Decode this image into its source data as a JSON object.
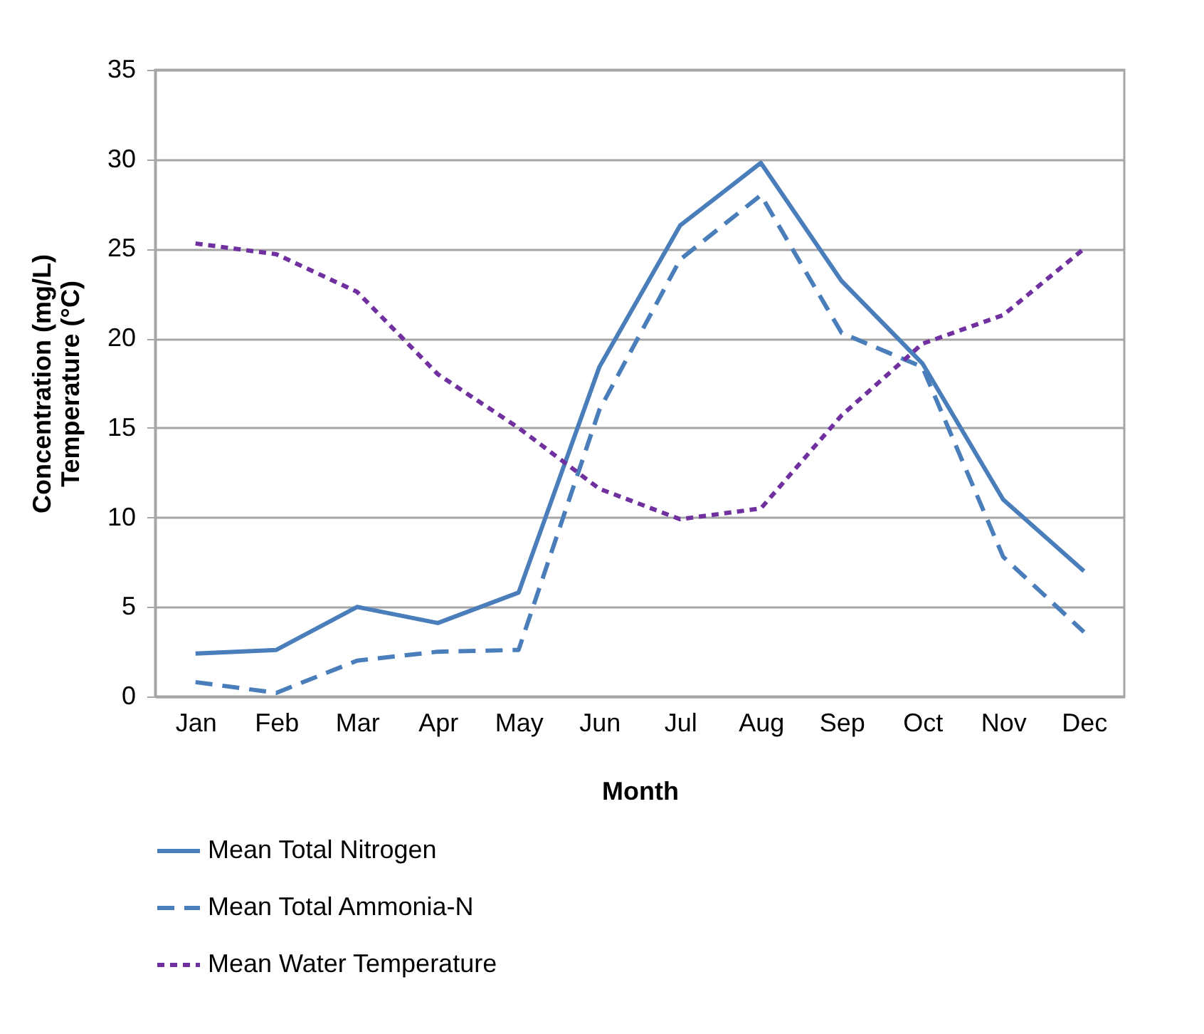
{
  "chart_data": {
    "type": "line",
    "xlabel": "Month",
    "ylabel": "Concentration (mg/L)\nTemperature (°C)",
    "categories": [
      "Jan",
      "Feb",
      "Mar",
      "Apr",
      "May",
      "Jun",
      "Jul",
      "Aug",
      "Sep",
      "Oct",
      "Nov",
      "Dec"
    ],
    "series": [
      {
        "name": "Mean Total Nitrogen",
        "color": "#4a7ebb",
        "line_style": "solid",
        "values": [
          2.4,
          2.6,
          5.0,
          4.1,
          5.8,
          18.4,
          26.3,
          29.8,
          23.2,
          18.6,
          11.0,
          7.0
        ]
      },
      {
        "name": "Mean Total Ammonia-N",
        "color": "#4a7ebb",
        "line_style": "dashed",
        "values": [
          0.8,
          0.2,
          2.0,
          2.5,
          2.6,
          16.0,
          24.4,
          28.0,
          20.3,
          18.4,
          7.8,
          3.6
        ]
      },
      {
        "name": "Mean Water Temperature",
        "color": "#7030a0",
        "line_style": "dotted",
        "values": [
          25.3,
          24.7,
          22.6,
          18.0,
          15.0,
          11.6,
          9.9,
          10.5,
          15.7,
          19.7,
          21.3,
          25.0
        ]
      }
    ],
    "ylim": [
      0,
      35
    ],
    "yticks": [
      0,
      5,
      10,
      15,
      20,
      25,
      30,
      35
    ],
    "grid": "y",
    "legend": "bottom",
    "marker": "none"
  }
}
